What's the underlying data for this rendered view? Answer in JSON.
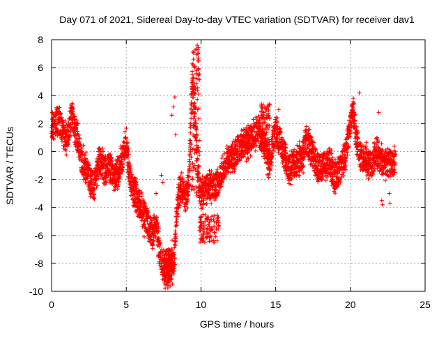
{
  "chart_data": {
    "type": "scatter",
    "title": "Day 071 of 2021, Sidereal Day-to-day VTEC variation (SDTVAR) for receiver dav1",
    "xlabel": "GPS time / hours",
    "ylabel": "SDTVAR / TECUs",
    "xlim": [
      0,
      25
    ],
    "ylim": [
      -10,
      8
    ],
    "x_ticks": [
      0,
      5,
      10,
      15,
      20,
      25
    ],
    "x_tick_labels": [
      "0",
      "5",
      "10",
      "15",
      "20",
      "25"
    ],
    "y_ticks": [
      -10,
      -8,
      -6,
      -4,
      -2,
      0,
      2,
      4,
      6,
      8
    ],
    "y_tick_labels": [
      "-10",
      "-8",
      "-6",
      "-4",
      "-2",
      "0",
      "2",
      "4",
      "6",
      "8"
    ],
    "grid": true,
    "marker": "+",
    "color": "#ff0000",
    "series": [
      {
        "name": "dav1",
        "trend_x": [
          0,
          0.2,
          0.4,
          0.6,
          0.8,
          1.0,
          1.2,
          1.4,
          1.6,
          1.8,
          2.0,
          2.2,
          2.4,
          2.6,
          2.8,
          3.0,
          3.2,
          3.4,
          3.6,
          3.8,
          4.0,
          4.2,
          4.4,
          4.6,
          4.8,
          5.0,
          5.2,
          5.4,
          5.6,
          5.8,
          6.0,
          6.2,
          6.4,
          6.6,
          6.8,
          7.0,
          7.2,
          7.4,
          7.6,
          7.8,
          8.0,
          8.2,
          8.4,
          8.6,
          8.8,
          9.0,
          9.2,
          9.4,
          9.6,
          9.8,
          10.0,
          10.2,
          10.4,
          10.6,
          10.8,
          11.0,
          11.2,
          11.4,
          11.6,
          11.8,
          12.0,
          12.2,
          12.4,
          12.6,
          12.8,
          13.0,
          13.2,
          13.4,
          13.6,
          13.8,
          14.0,
          14.2,
          14.4,
          14.6,
          14.8,
          15.0,
          15.2,
          15.4,
          15.6,
          15.8,
          16.0,
          16.2,
          16.4,
          16.6,
          16.8,
          17.0,
          17.2,
          17.4,
          17.6,
          17.8,
          18.0,
          18.2,
          18.4,
          18.6,
          18.8,
          19.0,
          19.2,
          19.4,
          19.6,
          19.8,
          20.0,
          20.2,
          20.4,
          20.6,
          20.8,
          21.0,
          21.2,
          21.4,
          21.6,
          21.8,
          22.0,
          22.2,
          22.4,
          22.6,
          22.8,
          23.0
        ],
        "trend_y": [
          1.5,
          2.0,
          2.3,
          1.8,
          1.2,
          0.8,
          1.8,
          2.5,
          1.5,
          0.5,
          -0.5,
          -1.0,
          -1.5,
          -2.0,
          -2.5,
          -1.5,
          -0.5,
          -1.0,
          -1.5,
          -1.0,
          -1.2,
          -2.0,
          -1.5,
          -1.0,
          0.0,
          0.5,
          -1.5,
          -2.5,
          -3.0,
          -3.5,
          -4.0,
          -4.5,
          -5.0,
          -5.5,
          -6.0,
          -5.0,
          -7.0,
          -8.0,
          -8.5,
          -8.2,
          -7.5,
          -7.8,
          -4.0,
          -2.5,
          -3.0,
          -3.5,
          -2.0,
          5.0,
          3.0,
          -2.0,
          -3.0,
          -2.8,
          -2.5,
          -2.5,
          -2.5,
          -2.5,
          -2.0,
          -1.5,
          -1.0,
          -0.5,
          -0.5,
          -0.3,
          0.0,
          0.2,
          0.5,
          0.5,
          0.8,
          1.0,
          1.2,
          1.5,
          1.0,
          0.5,
          -0.5,
          -1.0,
          0.5,
          1.5,
          1.0,
          0.5,
          -0.2,
          -1.0,
          -1.2,
          -1.0,
          -0.8,
          -0.5,
          -0.5,
          0.8,
          0.5,
          0.0,
          -0.5,
          -1.0,
          -1.2,
          -1.0,
          -1.0,
          -0.5,
          -1.5,
          -1.8,
          -1.5,
          -1.0,
          -0.5,
          0.5,
          2.0,
          3.0,
          1.0,
          0.0,
          -0.5,
          -0.5,
          -0.8,
          -1.0,
          -0.5,
          0.0,
          -0.5,
          -1.0,
          -0.8,
          -1.0,
          -0.8,
          -0.8
        ],
        "bands": [
          {
            "x": [
              9.3,
              9.9
            ],
            "y": [
              -3.2,
              7.5
            ]
          },
          {
            "x": [
              9.9,
              11.2
            ],
            "y": [
              -6.5,
              -4.5
            ]
          },
          {
            "x": [
              7.5,
              8.1
            ],
            "y": [
              -9.8,
              -7.0
            ]
          },
          {
            "x": [
              14.0,
              14.6
            ],
            "y": [
              0.0,
              3.4
            ]
          }
        ],
        "outliers_x": [
          8.15,
          8.25,
          8.3,
          9.75,
          9.8,
          9.85,
          7.35,
          7.45,
          22.1,
          22.15,
          22.6,
          22.65,
          21.9,
          14.05,
          15.2,
          20.6,
          6.2,
          7.0,
          9.5,
          9.55,
          8.05
        ],
        "outliers_y": [
          3.2,
          3.9,
          1.2,
          7.6,
          7.3,
          6.5,
          -1.7,
          -2.2,
          -3.5,
          -3.8,
          -3.0,
          -3.7,
          2.8,
          3.4,
          3.0,
          4.2,
          -6.1,
          -3.0,
          6.6,
          6.0,
          2.6
        ],
        "noise_pm": 0.9,
        "points_per_hour": 120
      }
    ]
  }
}
